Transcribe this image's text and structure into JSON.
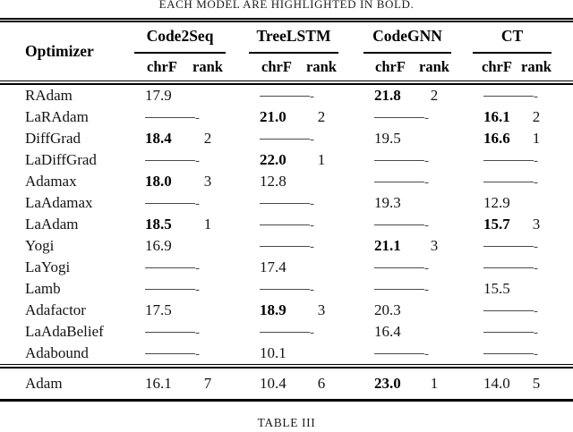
{
  "caption_top": "EACH MODEL ARE HIGHLIGHTED IN BOLD.",
  "caption_bottom": "TABLE III",
  "colors": {
    "text": "#141414",
    "bold_text": "#000000",
    "rule": "#000000",
    "dash": "#4a4a4a",
    "background": "#ffffff"
  },
  "table": {
    "col_header": "Optimizer",
    "models": [
      "Code2Seq",
      "TreeLSTM",
      "CodeGNN",
      "CT"
    ],
    "sub_headers": [
      "chrF",
      "rank"
    ],
    "missing_value_symbol": "———-",
    "rows": [
      {
        "optimizer": "RAdam",
        "cells": [
          {
            "chrF": "17.9",
            "rank": "",
            "bold": false
          },
          {
            "dash": true
          },
          {
            "chrF": "21.8",
            "rank": "2",
            "bold": true
          },
          {
            "dash": true
          }
        ]
      },
      {
        "optimizer": "LaRAdam",
        "cells": [
          {
            "dash": true
          },
          {
            "chrF": "21.0",
            "rank": "2",
            "bold": true
          },
          {
            "dash": true
          },
          {
            "chrF": "16.1",
            "rank": "2",
            "bold": true
          }
        ]
      },
      {
        "optimizer": "DiffGrad",
        "cells": [
          {
            "chrF": "18.4",
            "rank": "2",
            "bold": true
          },
          {
            "dash": true
          },
          {
            "chrF": "19.5",
            "rank": "",
            "bold": false
          },
          {
            "chrF": "16.6",
            "rank": "1",
            "bold": true
          }
        ]
      },
      {
        "optimizer": "LaDiffGrad",
        "cells": [
          {
            "dash": true
          },
          {
            "chrF": "22.0",
            "rank": "1",
            "bold": true
          },
          {
            "dash": true
          },
          {
            "dash": true
          }
        ]
      },
      {
        "optimizer": "Adamax",
        "cells": [
          {
            "chrF": "18.0",
            "rank": "3",
            "bold": true
          },
          {
            "chrF": "12.8",
            "rank": "",
            "bold": false
          },
          {
            "dash": true
          },
          {
            "dash": true
          }
        ]
      },
      {
        "optimizer": "LaAdamax",
        "cells": [
          {
            "dash": true
          },
          {
            "dash": true
          },
          {
            "chrF": "19.3",
            "rank": "",
            "bold": false
          },
          {
            "chrF": "12.9",
            "rank": "",
            "bold": false
          }
        ]
      },
      {
        "optimizer": "LaAdam",
        "cells": [
          {
            "chrF": "18.5",
            "rank": "1",
            "bold": true
          },
          {
            "dash": true
          },
          {
            "dash": true
          },
          {
            "chrF": "15.7",
            "rank": "3",
            "bold": true
          }
        ]
      },
      {
        "optimizer": "Yogi",
        "cells": [
          {
            "chrF": "16.9",
            "rank": "",
            "bold": false
          },
          {
            "dash": true
          },
          {
            "chrF": "21.1",
            "rank": "3",
            "bold": true
          },
          {
            "dash": true
          }
        ]
      },
      {
        "optimizer": "LaYogi",
        "cells": [
          {
            "dash": true
          },
          {
            "chrF": "17.4",
            "rank": "",
            "bold": false
          },
          {
            "dash": true
          },
          {
            "dash": true
          }
        ]
      },
      {
        "optimizer": "Lamb",
        "cells": [
          {
            "dash": true
          },
          {
            "dash": true
          },
          {
            "dash": true
          },
          {
            "chrF": "15.5",
            "rank": "",
            "bold": false
          }
        ]
      },
      {
        "optimizer": "Adafactor",
        "cells": [
          {
            "chrF": "17.5",
            "rank": "",
            "bold": false
          },
          {
            "chrF": "18.9",
            "rank": "3",
            "bold": true
          },
          {
            "chrF": "20.3",
            "rank": "",
            "bold": false
          },
          {
            "dash": true
          }
        ]
      },
      {
        "optimizer": "LaAdaBelief",
        "cells": [
          {
            "dash": true
          },
          {
            "dash": true
          },
          {
            "chrF": "16.4",
            "rank": "",
            "bold": false
          },
          {
            "dash": true
          }
        ]
      },
      {
        "optimizer": "Adabound",
        "cells": [
          {
            "dash": true
          },
          {
            "chrF": "10.1",
            "rank": "",
            "bold": false
          },
          {
            "dash": true
          },
          {
            "dash": true
          }
        ]
      }
    ],
    "baseline_row": {
      "optimizer": "Adam",
      "cells": [
        {
          "chrF": "16.1",
          "rank": "7",
          "bold": false
        },
        {
          "chrF": "10.4",
          "rank": "6",
          "bold": false
        },
        {
          "chrF": "23.0",
          "rank": "1",
          "bold": true
        },
        {
          "chrF": "14.0",
          "rank": "5",
          "bold": false
        }
      ]
    }
  }
}
